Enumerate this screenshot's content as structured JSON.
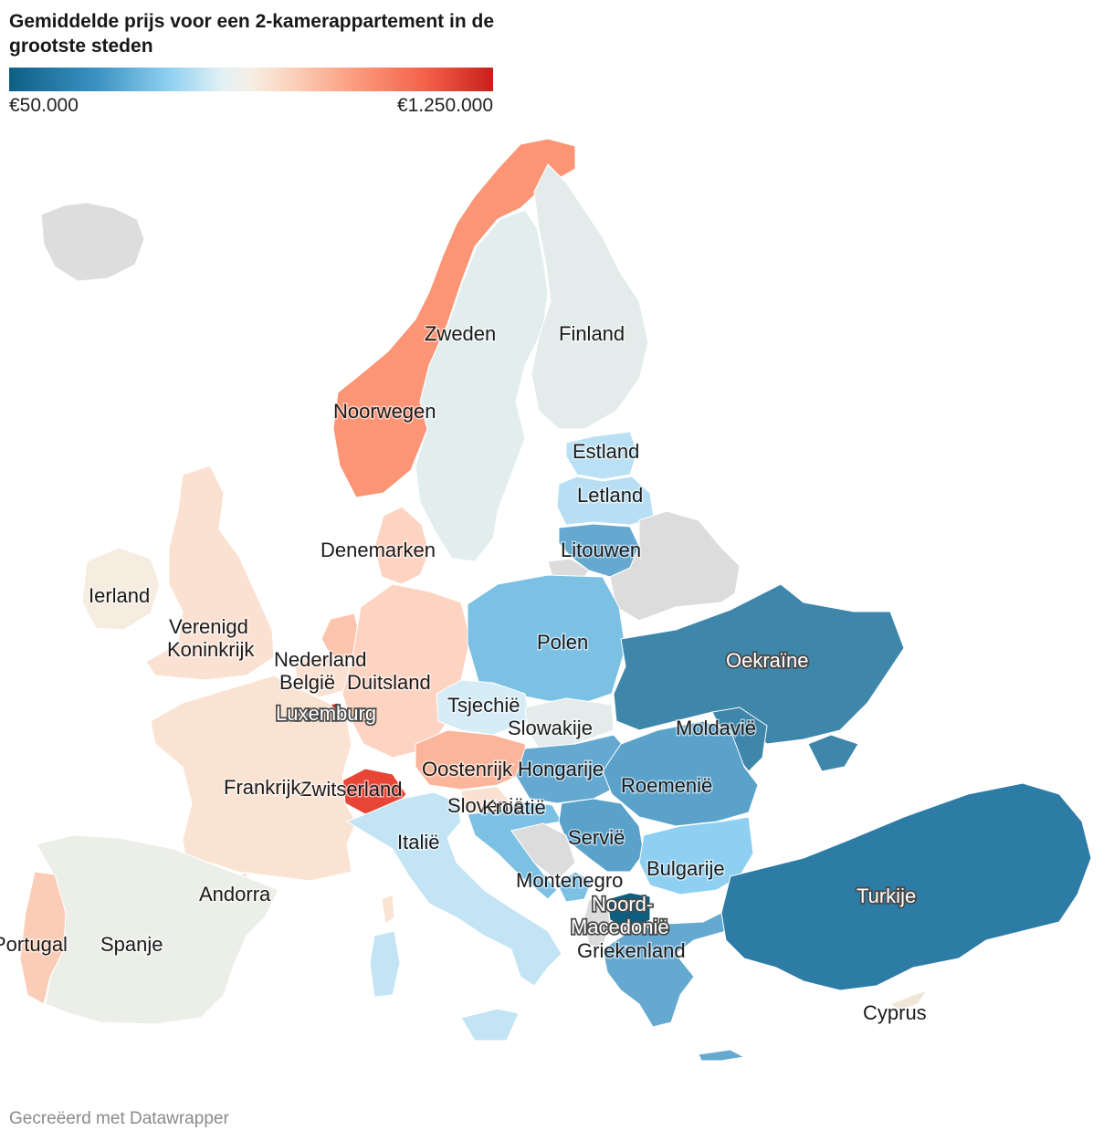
{
  "title": "Gemiddelde prijs voor een 2-kamerappartement in de grootste steden",
  "legend": {
    "min_label": "€50.000",
    "max_label": "€1.250.000",
    "min_color": "#0e5f85",
    "max_color": "#c8201b"
  },
  "footer": "Gecreëerd met Datawrapper",
  "countries": {
    "iceland": {
      "name": "",
      "color": "#dddddd"
    },
    "norway": {
      "name": "Noorwegen",
      "color": "#fb9576"
    },
    "sweden": {
      "name": "Zweden",
      "color": "#e2eeee"
    },
    "finland": {
      "name": "Finland",
      "color": "#e4eceb"
    },
    "estonia": {
      "name": "Estland",
      "color": "#b9e0f4"
    },
    "latvia": {
      "name": "Letland",
      "color": "#b7def3"
    },
    "lithuania": {
      "name": "Litouwen",
      "color": "#65a9d1"
    },
    "belarus": {
      "name": "",
      "color": "#dcdcdc"
    },
    "denmark": {
      "name": "Denemarken",
      "color": "#fdd3c1"
    },
    "ireland": {
      "name": "Ierland",
      "color": "#f6ece0"
    },
    "uk": {
      "name": "Verenigd Koninkrijk",
      "color": "#fbe1d2"
    },
    "netherlands": {
      "name": "Nederland",
      "color": "#fbc6ad"
    },
    "belgium": {
      "name": "België",
      "color": "#fbe1d2"
    },
    "luxembourg": {
      "name": "Luxemburg",
      "color": "#b8281e"
    },
    "germany": {
      "name": "Duitsland",
      "color": "#fdd3c1"
    },
    "poland": {
      "name": "Polen",
      "color": "#7cc1e4"
    },
    "czechia": {
      "name": "Tsjechië",
      "color": "#d6ecf7"
    },
    "slovakia": {
      "name": "Slowakije",
      "color": "#e4eceb"
    },
    "austria": {
      "name": "Oostenrijk",
      "color": "#fbb59a"
    },
    "switzerland": {
      "name": "Zwitserland",
      "color": "#e84536"
    },
    "france": {
      "name": "Frankrijk",
      "color": "#fbe3d3"
    },
    "andorra": {
      "name": "Andorra",
      "color": "#fbe3d3"
    },
    "spain": {
      "name": "Spanje",
      "color": "#ecefe8"
    },
    "portugal": {
      "name": "Portugal",
      "color": "#fbcdb7"
    },
    "italy": {
      "name": "Italië",
      "color": "#c3e4f4"
    },
    "slovenia": {
      "name": "Slovenië",
      "color": "#fbe1d2"
    },
    "croatia": {
      "name": "Kroatië",
      "color": "#7cc1e4"
    },
    "hungary": {
      "name": "Hongarije",
      "color": "#65a9d1"
    },
    "ukraine": {
      "name": "Oekraïne",
      "color": "#3f86ab"
    },
    "moldova": {
      "name": "Moldavië",
      "color": "#3f86ab"
    },
    "romania": {
      "name": "Roemenië",
      "color": "#5aa2ca"
    },
    "serbia": {
      "name": "Servië",
      "color": "#5aa2ca"
    },
    "bosnia": {
      "name": "",
      "color": "#dcdcdc"
    },
    "montenegro": {
      "name": "Montenegro",
      "color": "#7cc1e4"
    },
    "bulgaria": {
      "name": "Bulgarije",
      "color": "#8fd0f2"
    },
    "north_macedonia": {
      "name": "Noord-Macedonië",
      "color": "#0e5f7f"
    },
    "albania": {
      "name": "",
      "color": "#dcdcdc"
    },
    "greece": {
      "name": "Griekenland",
      "color": "#65a9d1"
    },
    "turkey": {
      "name": "Turkije",
      "color": "#2d7ca5"
    },
    "cyprus": {
      "name": "Cyprus",
      "color": "#f0e6d8"
    },
    "russia": {
      "name": "",
      "color": "#dcdcdc"
    }
  }
}
